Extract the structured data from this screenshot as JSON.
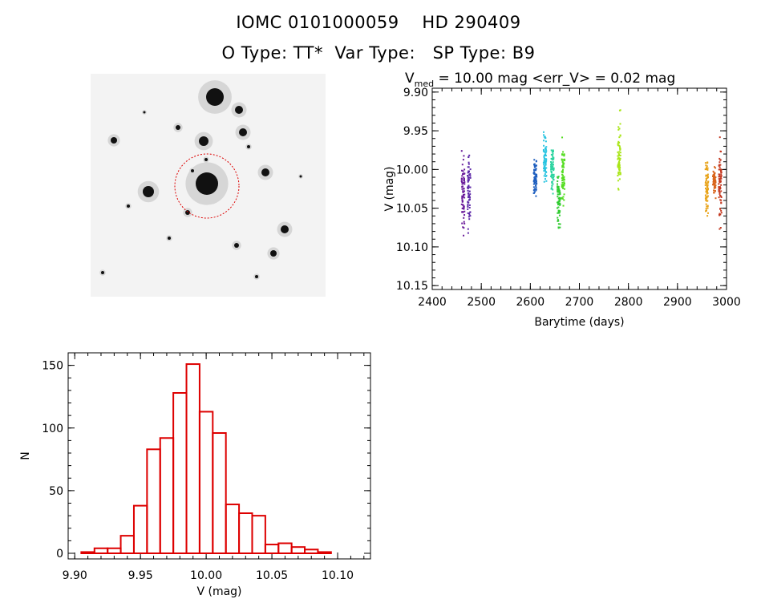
{
  "header": {
    "title_line1": "IOMC 0101000059    HD 290409",
    "title_line2": "O Type: TT*  Var Type:   SP Type: B9"
  },
  "finder": {
    "type": "image",
    "description_icon": "star-field-image",
    "circle_color": "#dd0000"
  },
  "colors": {
    "histogram_bars": "#dd0000",
    "axes": "#000000"
  },
  "chart_data": [
    {
      "type": "scatter",
      "title_parts": {
        "pre": "V",
        "sub": "med",
        "post": " = 10.00 mag <err_V> = 0.02 mag"
      },
      "xlabel": "Barytime (days)",
      "ylabel": "V (mag)",
      "xlim": [
        2400,
        3000
      ],
      "ylim": [
        10.155,
        9.895
      ],
      "y_inverted": true,
      "xticks": [
        2400,
        2500,
        2600,
        2700,
        2800,
        2900,
        3000
      ],
      "yticks": [
        9.9,
        9.95,
        10.0,
        10.05,
        10.1,
        10.15
      ],
      "ytick_labels": [
        "9.90",
        "9.95",
        "10.00",
        "10.05",
        "10.10",
        "10.15"
      ],
      "groups": [
        {
          "x": 2463,
          "ymin": 9.962,
          "ymax": 10.108,
          "color": "#6a1b9a"
        },
        {
          "x": 2475,
          "ymin": 9.968,
          "ymax": 10.095,
          "color": "#5e2aa8"
        },
        {
          "x": 2610,
          "ymin": 9.975,
          "ymax": 10.045,
          "color": "#1f5fbf"
        },
        {
          "x": 2630,
          "ymin": 9.945,
          "ymax": 10.03,
          "color": "#29c4e0"
        },
        {
          "x": 2645,
          "ymin": 9.965,
          "ymax": 10.04,
          "color": "#2dd4a0"
        },
        {
          "x": 2658,
          "ymin": 9.985,
          "ymax": 10.095,
          "color": "#33cc33"
        },
        {
          "x": 2667,
          "ymin": 9.952,
          "ymax": 10.06,
          "color": "#55dd22"
        },
        {
          "x": 2781,
          "ymin": 9.915,
          "ymax": 10.05,
          "color": "#aae61a"
        },
        {
          "x": 2960,
          "ymin": 9.975,
          "ymax": 10.075,
          "color": "#e8a319"
        },
        {
          "x": 2975,
          "ymin": 9.99,
          "ymax": 10.04,
          "color": "#d9651c"
        },
        {
          "x": 2987,
          "ymin": 9.952,
          "ymax": 10.09,
          "color": "#c43a22"
        }
      ]
    },
    {
      "type": "bar",
      "subtype": "histogram",
      "xlabel": "V (mag)",
      "ylabel": "N",
      "xlim": [
        9.895,
        10.125
      ],
      "ylim": [
        0,
        160
      ],
      "xticks": [
        9.9,
        9.95,
        10.0,
        10.05,
        10.1
      ],
      "xtick_labels": [
        "9.90",
        "9.95",
        "10.00",
        "10.05",
        "10.10"
      ],
      "yticks": [
        0,
        50,
        100,
        150
      ],
      "bin_width": 0.01,
      "bins": [
        {
          "left": 9.905,
          "value": 1
        },
        {
          "left": 9.915,
          "value": 4
        },
        {
          "left": 9.925,
          "value": 4
        },
        {
          "left": 9.935,
          "value": 14
        },
        {
          "left": 9.945,
          "value": 38
        },
        {
          "left": 9.955,
          "value": 83
        },
        {
          "left": 9.965,
          "value": 92
        },
        {
          "left": 9.975,
          "value": 128
        },
        {
          "left": 9.985,
          "value": 151
        },
        {
          "left": 9.995,
          "value": 113
        },
        {
          "left": 10.005,
          "value": 96
        },
        {
          "left": 10.015,
          "value": 39
        },
        {
          "left": 10.025,
          "value": 32
        },
        {
          "left": 10.035,
          "value": 30
        },
        {
          "left": 10.045,
          "value": 7
        },
        {
          "left": 10.055,
          "value": 8
        },
        {
          "left": 10.065,
          "value": 5
        },
        {
          "left": 10.075,
          "value": 3
        },
        {
          "left": 10.085,
          "value": 1
        }
      ]
    }
  ]
}
